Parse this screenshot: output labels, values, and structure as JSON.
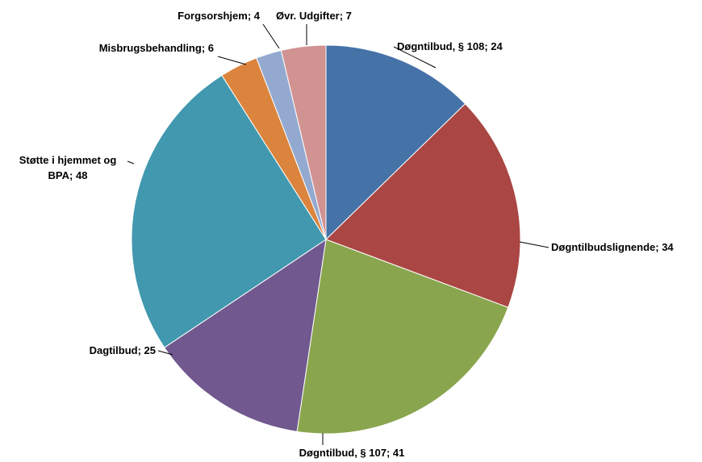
{
  "chart_data": {
    "type": "pie",
    "labels": [
      "Døgntilbud, § 108;  24",
      "Døgntilbudslignende;  34",
      "Døgntilbud, § 107;  41",
      "Dagtilbud;  25",
      "Støtte i hjemmet og BPA;  48",
      "Misbrugsbehandling;  6",
      "Forgsorshjem;  4",
      "Øvr. Udgifter;  7"
    ],
    "values": [
      24,
      34,
      41,
      25,
      48,
      6,
      4,
      7
    ],
    "colors": [
      "#4572a7",
      "#aa4643",
      "#89a54e",
      "#71588f",
      "#4198af",
      "#db843d",
      "#93a9cf",
      "#d19392"
    ]
  }
}
